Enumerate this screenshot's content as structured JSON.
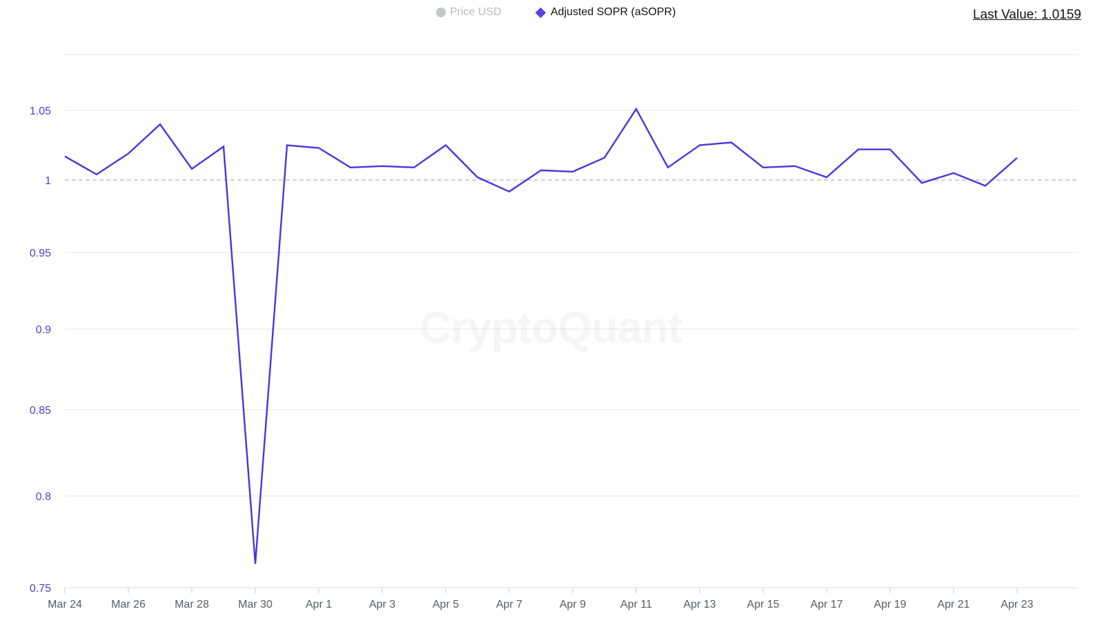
{
  "legend": {
    "price_label": "Price USD",
    "sopr_label": "Adjusted SOPR (aSOPR)"
  },
  "last_value_text": "Last Value: 1.0159",
  "watermark": "CryptoQuant",
  "colors": {
    "line": "#4b33e0",
    "ytick": "#4b3fd8",
    "xtick": "#555a66",
    "grid": "#e6e6ea",
    "reference": "#b5b5b5",
    "price_legend": "#c4c4cc"
  },
  "chart_data": {
    "type": "line",
    "title": "",
    "xlabel": "",
    "ylabel": "",
    "reference_line": 1,
    "ylim": [
      0.75,
      1.09
    ],
    "yticks": [
      0.75,
      0.8,
      0.85,
      0.9,
      0.95,
      1,
      1.05
    ],
    "ytick_labels": [
      "0.75",
      "0.8",
      "0.85",
      "0.9",
      "0.95",
      "1",
      "1.05"
    ],
    "xtick_labels": [
      "Mar 24",
      "Mar 26",
      "Mar 28",
      "Mar 30",
      "Apr 1",
      "Apr 3",
      "Apr 5",
      "Apr 7",
      "Apr 9",
      "Apr 11",
      "Apr 13",
      "Apr 15",
      "Apr 17",
      "Apr 19",
      "Apr 21",
      "Apr 23"
    ],
    "x": [
      "Mar 24",
      "Mar 25",
      "Mar 26",
      "Mar 27",
      "Mar 28",
      "Mar 29",
      "Mar 30",
      "Mar 31",
      "Apr 1",
      "Apr 2",
      "Apr 3",
      "Apr 4",
      "Apr 5",
      "Apr 6",
      "Apr 7",
      "Apr 8",
      "Apr 9",
      "Apr 10",
      "Apr 11",
      "Apr 12",
      "Apr 13",
      "Apr 14",
      "Apr 15",
      "Apr 16",
      "Apr 17",
      "Apr 18",
      "Apr 19",
      "Apr 20",
      "Apr 21",
      "Apr 22",
      "Apr 23"
    ],
    "series": [
      {
        "name": "Adjusted SOPR (aSOPR)",
        "values": [
          1.017,
          1.004,
          1.019,
          1.04,
          1.008,
          1.024,
          0.763,
          1.025,
          1.023,
          1.009,
          1.01,
          1.009,
          1.025,
          1.002,
          0.992,
          1.007,
          1.006,
          1.016,
          1.051,
          1.009,
          1.025,
          1.027,
          1.009,
          1.01,
          1.002,
          1.022,
          1.022,
          0.998,
          1.005,
          0.996,
          1.0159
        ]
      }
    ],
    "grid": true,
    "legend_position": "top-center"
  }
}
